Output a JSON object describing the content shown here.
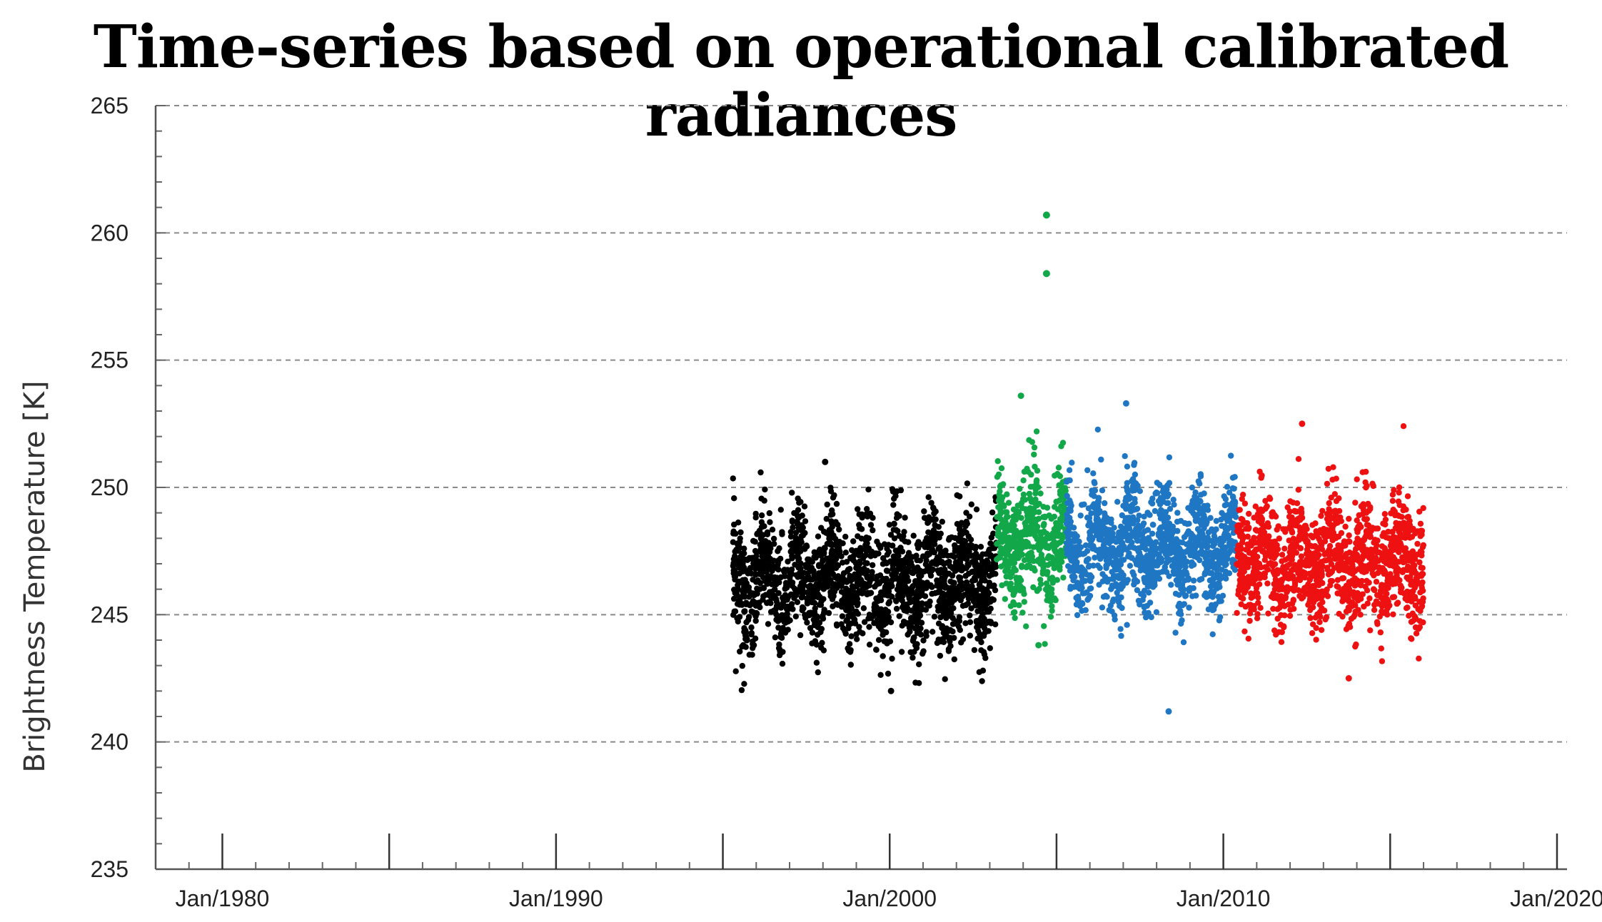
{
  "chart_data": {
    "type": "scatter",
    "title": "Time-series based on operational calibrated radiances",
    "xlabel": "",
    "ylabel": "Brightness Temperature [K]",
    "ylim": [
      235,
      265
    ],
    "y_ticks": [
      "235",
      "240",
      "245",
      "250",
      "255",
      "260",
      "265"
    ],
    "xlim_years": [
      1978,
      2020.3
    ],
    "x_ticks": [
      {
        "year": 1980,
        "label": "Jan/1980"
      },
      {
        "year": 1990,
        "label": "Jan/1990"
      },
      {
        "year": 2000,
        "label": "Jan/2000"
      },
      {
        "year": 2010,
        "label": "Jan/2010"
      },
      {
        "year": 2020,
        "label": "Jan/2020"
      }
    ],
    "grid": "horizontal dashed",
    "series": [
      {
        "color": "#000000",
        "x_range": [
          1995.3,
          2003.2
        ],
        "mean": 246.3,
        "spread": 1.9,
        "min": 242.0,
        "max": 251.0
      },
      {
        "color": "#12a84a",
        "x_range": [
          2003.2,
          2005.3
        ],
        "mean": 247.8,
        "spread": 2.0,
        "min": 243.8,
        "max": 253.6,
        "outliers": [
          {
            "x": 2004.7,
            "y": 260.7
          },
          {
            "x": 2004.7,
            "y": 258.4
          }
        ]
      },
      {
        "color": "#1f77c4",
        "x_range": [
          2005.3,
          2010.4
        ],
        "mean": 247.6,
        "spread": 1.7,
        "min": 241.2,
        "max": 253.3
      },
      {
        "color": "#ee1111",
        "x_range": [
          2010.4,
          2016.0
        ],
        "mean": 247.1,
        "spread": 1.8,
        "min": 242.5,
        "max": 252.5
      }
    ]
  }
}
